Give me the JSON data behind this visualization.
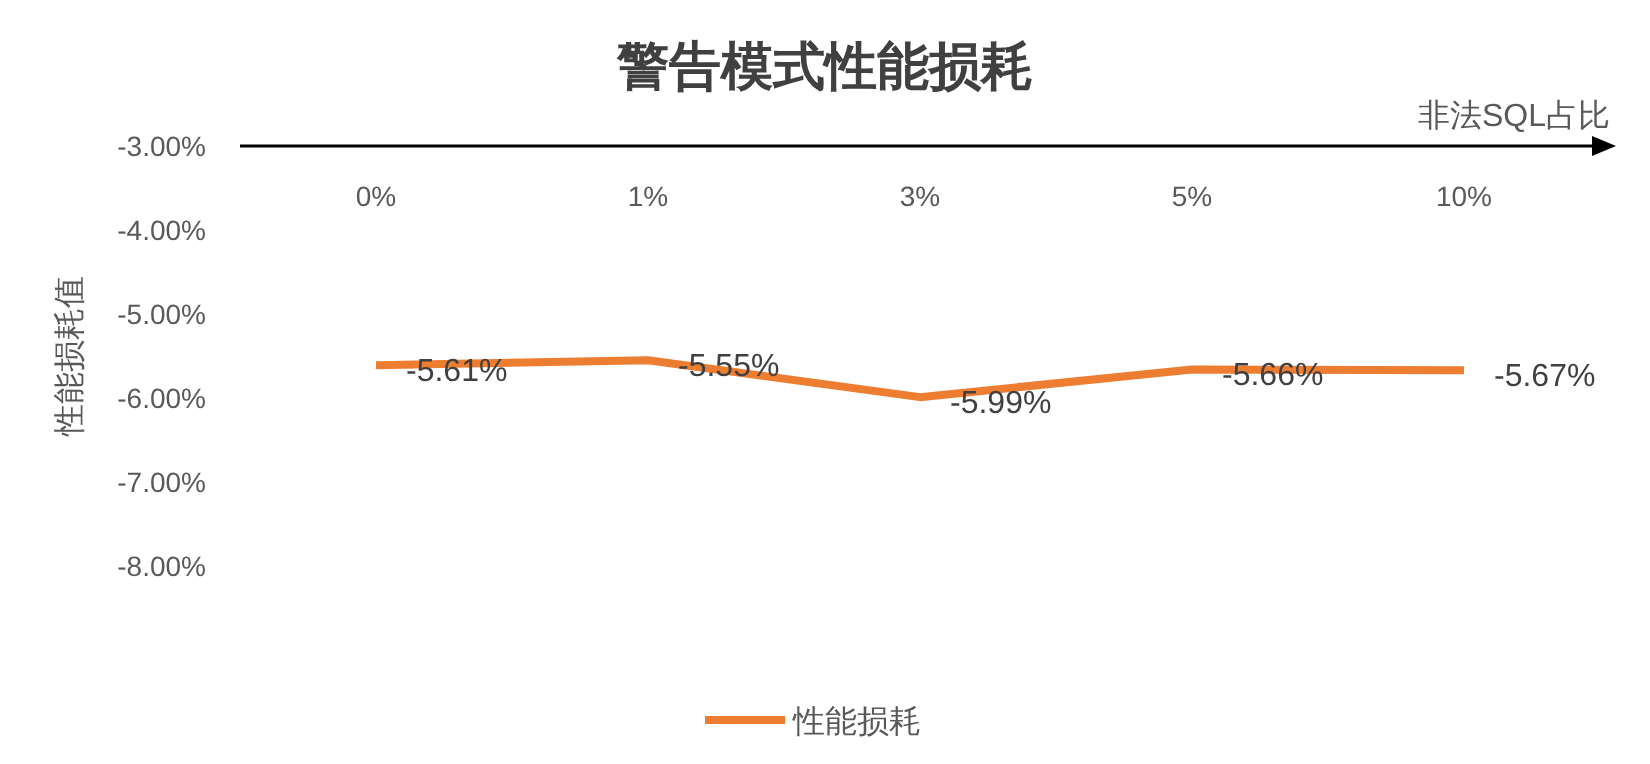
{
  "chart_data": {
    "type": "line",
    "title": "警告模式性能损耗",
    "xlabel": "非法SQL占比",
    "ylabel": "性能损耗值",
    "categories": [
      "0%",
      "1%",
      "3%",
      "5%",
      "10%"
    ],
    "series": [
      {
        "name": "性能损耗",
        "color": "#ed7d31",
        "values": [
          -5.61,
          -5.55,
          -5.99,
          -5.66,
          -5.67
        ],
        "value_labels": [
          "-5.61%",
          "-5.55%",
          "-5.99%",
          "-5.66%",
          "-5.67%"
        ]
      }
    ],
    "ylim": [
      -8,
      -3
    ],
    "yticks": [
      {
        "value": -3,
        "label": "-3.00%"
      },
      {
        "value": -4,
        "label": "-4.00%"
      },
      {
        "value": -5,
        "label": "-5.00%"
      },
      {
        "value": -6,
        "label": "-6.00%"
      },
      {
        "value": -7,
        "label": "-7.00%"
      },
      {
        "value": -8,
        "label": "-8.00%"
      }
    ],
    "grid": false,
    "legend": "bottom",
    "marker": "none",
    "line_style": "solid"
  }
}
